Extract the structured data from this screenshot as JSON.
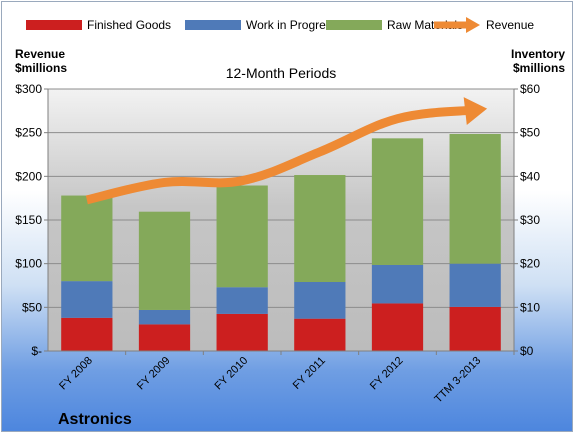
{
  "chart_data": {
    "type": "bar",
    "stacked": true,
    "title": "12-Month Periods",
    "company": "Astronics",
    "ylabel_left": [
      "Revenue",
      "$millions"
    ],
    "ylabel_right": [
      "Inventory",
      "$millions"
    ],
    "categories": [
      "FY 2008",
      "FY 2009",
      "FY 2010",
      "FY 2011",
      "FY 2012",
      "TTM 3-2013"
    ],
    "left_axis": {
      "range": [
        0,
        300
      ],
      "ticks": [
        0,
        50,
        100,
        150,
        200,
        250,
        300
      ],
      "tick_labels": [
        "$-",
        "$50",
        "$100",
        "$150",
        "$200",
        "$250",
        "$300"
      ]
    },
    "right_axis": {
      "range": [
        0,
        60
      ],
      "ticks": [
        0,
        10,
        20,
        30,
        40,
        50,
        60
      ],
      "tick_labels": [
        "$0",
        "$10",
        "$20",
        "$30",
        "$40",
        "$50",
        "$60"
      ]
    },
    "bar_series": [
      {
        "name": "Finished Goods",
        "axis": "right",
        "color": "#cc1f1f",
        "values": [
          7.6,
          6.1,
          8.5,
          7.4,
          10.9,
          10.1
        ]
      },
      {
        "name": "Work in Progress",
        "axis": "right",
        "color": "#4f7ab8",
        "values": [
          8.4,
          3.3,
          6.1,
          8.4,
          8.8,
          9.9
        ]
      },
      {
        "name": "Raw Materials",
        "axis": "right",
        "color": "#84a95a",
        "values": [
          19.6,
          22.5,
          23.3,
          24.5,
          29.0,
          29.7
        ]
      }
    ],
    "line_series": [
      {
        "name": "Revenue",
        "axis": "left",
        "color": "#ee8a34",
        "values": [
          173,
          193,
          195,
          228,
          266,
          276
        ]
      }
    ],
    "legend_position": "top",
    "grid": true
  }
}
